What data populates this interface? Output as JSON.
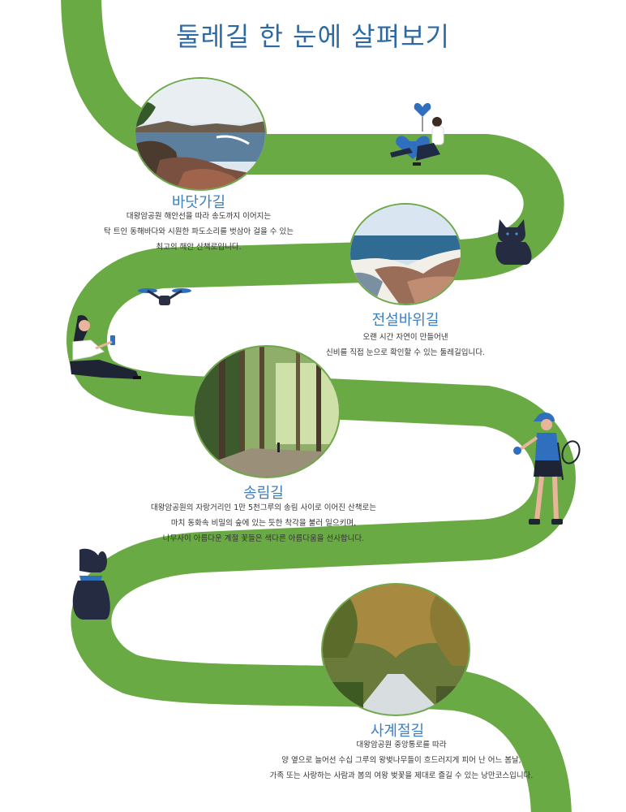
{
  "page_title": "둘레길 한 눈에 살펴보기",
  "colors": {
    "path": "#6aaa45",
    "title": "#2d6aa3",
    "section_title": "#3c7fc0",
    "accent_blue": "#2f6fbd"
  },
  "sections": [
    {
      "title": "바닷가길",
      "photo": "coastal-rocks-photo",
      "desc": [
        "대왕암공원 해안선을 따라 송도까지 이어지는",
        "탁 트인 동해바다와 시원한 파도소리를 벗삼아 걸을 수 있는",
        "최고의 해안 산책로입니다."
      ]
    },
    {
      "title": "전설바위길",
      "photo": "legend-rock-photo",
      "desc": [
        "오랜 시간 자연이 만들어낸",
        "신비를 직접 눈으로 확인할 수 있는 둘레길입니다."
      ]
    },
    {
      "title": "송림길",
      "photo": "pine-forest-photo",
      "desc": [
        "대왕암공원의 자랑거리인 1만 5천그루의 송림 사이로 이어진 산책로는",
        "마치 동화속 비밀의 숲에 있는 듯한 착각을 불러 일으키며,",
        "나무사이 아름다운 계절 꽃들은 색다른 아름다움을 선사합니다."
      ]
    },
    {
      "title": "사계절길",
      "photo": "cherry-blossom-road-photo",
      "desc": [
        "대왕암공원 중앙통로를 따라",
        "양 옆으로 늘어선 수십 그루의 왕벚나무들이 흐드러지게 피어 난 어느 봄날,",
        "가족 또는 사랑하는 사람과 봄의 여왕 벚꽃을 제대로 즐길 수 있는 낭만코스입니다."
      ]
    }
  ]
}
